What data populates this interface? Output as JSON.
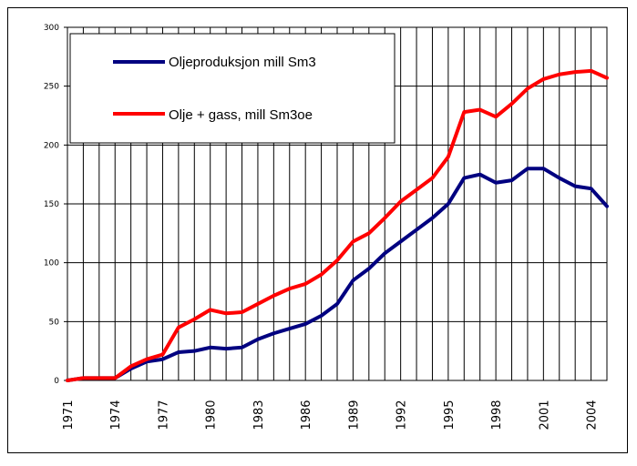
{
  "chart_data": {
    "type": "line",
    "title": "",
    "xlabel": "",
    "ylabel": "",
    "ylim": [
      0,
      300
    ],
    "xlim": [
      1971,
      2005
    ],
    "yticks": [
      0,
      50,
      100,
      150,
      200,
      250,
      300
    ],
    "ytick_labels": [
      "0",
      "50",
      "100",
      "150",
      "200",
      "250",
      "300"
    ],
    "xticks": [
      1971,
      1974,
      1977,
      1980,
      1983,
      1986,
      1989,
      1992,
      1995,
      1998,
      2001,
      2004
    ],
    "xtick_labels": [
      "1971",
      "1974",
      "1977",
      "1980",
      "1983",
      "1986",
      "1989",
      "1992",
      "1995",
      "1998",
      "2001",
      "2004"
    ],
    "grid": "vertical lines every year, horizontal lines at y ticks",
    "legend_position": "top-left",
    "series": [
      {
        "name": "Oljeproduksjon mill Sm3",
        "color": "#000080",
        "x": [
          1971,
          1972,
          1973,
          1974,
          1975,
          1976,
          1977,
          1978,
          1979,
          1980,
          1981,
          1982,
          1983,
          1984,
          1985,
          1986,
          1987,
          1988,
          1989,
          1990,
          1991,
          1992,
          1993,
          1994,
          1995,
          1996,
          1997,
          1998,
          1999,
          2000,
          2001,
          2002,
          2003,
          2004,
          2005
        ],
        "values": [
          0,
          2,
          2,
          2,
          10,
          16,
          18,
          24,
          25,
          28,
          27,
          28,
          35,
          40,
          44,
          48,
          55,
          65,
          85,
          95,
          108,
          118,
          128,
          138,
          150,
          172,
          175,
          168,
          170,
          180,
          180,
          172,
          165,
          163,
          148
        ]
      },
      {
        "name": "Olje + gass, mill Sm3oe",
        "color": "#ff0000",
        "x": [
          1971,
          1972,
          1973,
          1974,
          1975,
          1976,
          1977,
          1978,
          1979,
          1980,
          1981,
          1982,
          1983,
          1984,
          1985,
          1986,
          1987,
          1988,
          1989,
          1990,
          1991,
          1992,
          1993,
          1994,
          1995,
          1996,
          1997,
          1998,
          1999,
          2000,
          2001,
          2002,
          2003,
          2004,
          2005
        ],
        "values": [
          0,
          2,
          2,
          2,
          12,
          18,
          22,
          45,
          52,
          60,
          57,
          58,
          65,
          72,
          78,
          82,
          90,
          102,
          118,
          125,
          138,
          152,
          162,
          172,
          190,
          228,
          230,
          224,
          235,
          248,
          256,
          260,
          262,
          263,
          257
        ]
      }
    ]
  }
}
